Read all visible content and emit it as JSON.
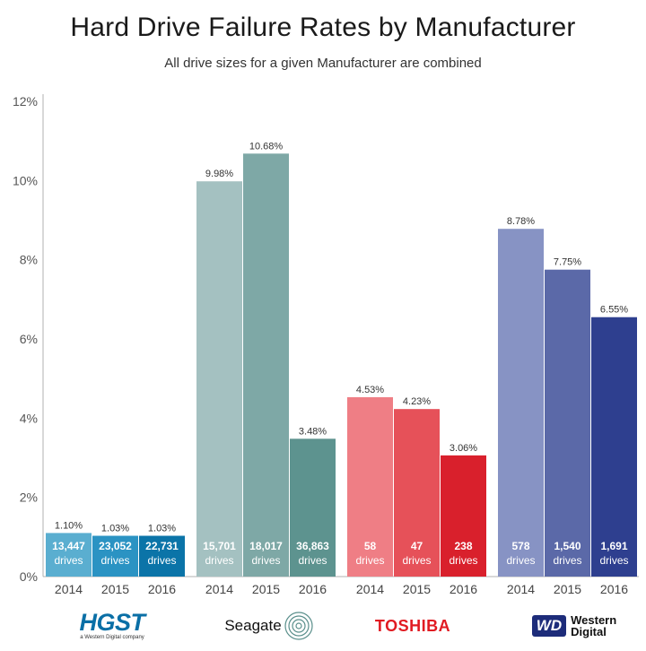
{
  "chart_data": {
    "type": "bar",
    "title": "Hard Drive Failure Rates by Manufacturer",
    "subtitle": "All drive sizes for a given Manufacturer are combined",
    "xlabel": "",
    "ylabel": "",
    "ylim": [
      0,
      12
    ],
    "yticks": [
      "0%",
      "2%",
      "4%",
      "6%",
      "8%",
      "10%",
      "12%"
    ],
    "ytick_values": [
      0,
      2,
      4,
      6,
      8,
      10,
      12
    ],
    "grid": false,
    "groups": [
      {
        "manufacturer": "HGST",
        "bars": [
          {
            "year": "2014",
            "value": 1.1,
            "label": "1.10%",
            "drives": "13,447",
            "color": "#5aaed0"
          },
          {
            "year": "2015",
            "value": 1.03,
            "label": "1.03%",
            "drives": "23,052",
            "color": "#2b93c3"
          },
          {
            "year": "2016",
            "value": 1.03,
            "label": "1.03%",
            "drives": "22,731",
            "color": "#0b74a8"
          }
        ]
      },
      {
        "manufacturer": "Seagate",
        "bars": [
          {
            "year": "2014",
            "value": 9.98,
            "label": "9.98%",
            "drives": "15,701",
            "color": "#a4c1c1"
          },
          {
            "year": "2015",
            "value": 10.68,
            "label": "10.68%",
            "drives": "18,017",
            "color": "#7ea8a6"
          },
          {
            "year": "2016",
            "value": 3.48,
            "label": "3.48%",
            "drives": "36,863",
            "color": "#5d938f"
          }
        ]
      },
      {
        "manufacturer": "Toshiba",
        "bars": [
          {
            "year": "2014",
            "value": 4.53,
            "label": "4.53%",
            "drives": "58",
            "color": "#ef7e85"
          },
          {
            "year": "2015",
            "value": 4.23,
            "label": "4.23%",
            "drives": "47",
            "color": "#e65159"
          },
          {
            "year": "2016",
            "value": 3.06,
            "label": "3.06%",
            "drives": "238",
            "color": "#d9202c"
          }
        ]
      },
      {
        "manufacturer": "Western Digital",
        "bars": [
          {
            "year": "2014",
            "value": 8.78,
            "label": "8.78%",
            "drives": "578",
            "color": "#8793c4"
          },
          {
            "year": "2015",
            "value": 7.75,
            "label": "7.75%",
            "drives": "1,540",
            "color": "#5b69a8"
          },
          {
            "year": "2016",
            "value": 6.55,
            "label": "6.55%",
            "drives": "1,691",
            "color": "#2e3f8f"
          }
        ]
      }
    ],
    "drives_suffix": "drives"
  },
  "logos": {
    "hgst": {
      "name": "HGST",
      "tagline": "a Western Digital company"
    },
    "seagate": {
      "name": "Seagate"
    },
    "toshiba": {
      "name": "TOSHIBA"
    },
    "wd": {
      "badge": "WD",
      "line1": "Western",
      "line2": "Digital"
    }
  },
  "colors": {
    "axis": "#b0b0b0",
    "label_text": "#333333",
    "inner_text": "#ffffff"
  }
}
